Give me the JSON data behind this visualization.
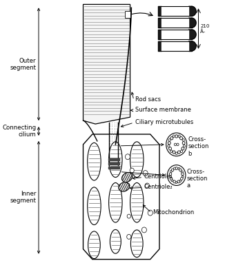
{
  "bg_color": "#ffffff",
  "fg_color": "#000000",
  "labels": {
    "outer_segment": "Outer\nsegment",
    "connecting_cilium": "Connecting\ncilium",
    "inner_segment": "Inner\nsegment",
    "rod_sacs": "Rod sacs",
    "surface_membrane": "Surface membrane",
    "ciliary_microtubules": "Ciliary microtubules",
    "cross_section_b": "Cross-\nsection\nb",
    "cross_section_a": "Cross-\nsection\na",
    "centriole1": "Centriole₁",
    "centriole2": "Centriole₂",
    "mitochondrion": "Mitochondrion",
    "dim_label": "210\nÅ–"
  }
}
